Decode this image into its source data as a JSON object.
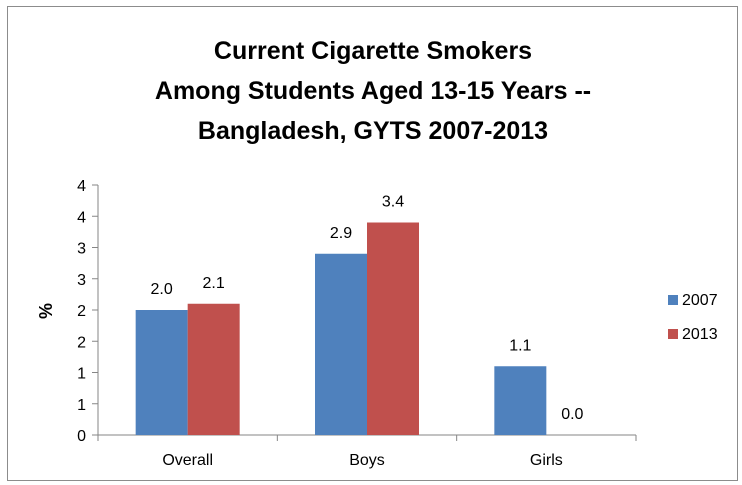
{
  "chart_data": {
    "type": "bar",
    "title_lines": [
      "Current Cigarette Smokers",
      "Among Students Aged 13-15 Years --",
      "Bangladesh, GYTS 2007-2013"
    ],
    "xlabel": "",
    "ylabel": "%",
    "categories": [
      "Overall",
      "Boys",
      "Girls"
    ],
    "series": [
      {
        "name": "2007",
        "color": "#4f81bd",
        "values": [
          2.0,
          2.9,
          1.1
        ],
        "labels": [
          "2.0",
          "2.9",
          "1.1"
        ]
      },
      {
        "name": "2013",
        "color": "#c0504d",
        "values": [
          2.1,
          3.4,
          0.0
        ],
        "labels": [
          "2.1",
          "3.4",
          "0.0"
        ]
      }
    ],
    "ylim": [
      0,
      4
    ],
    "ytick_values": [
      0,
      0.5,
      1,
      1.5,
      2,
      2.5,
      3,
      3.5,
      4
    ],
    "ytick_labels": [
      "0",
      "1",
      "1",
      "2",
      "2",
      "3",
      "3",
      "4",
      "4"
    ],
    "grid": false,
    "legend_position": "right"
  }
}
